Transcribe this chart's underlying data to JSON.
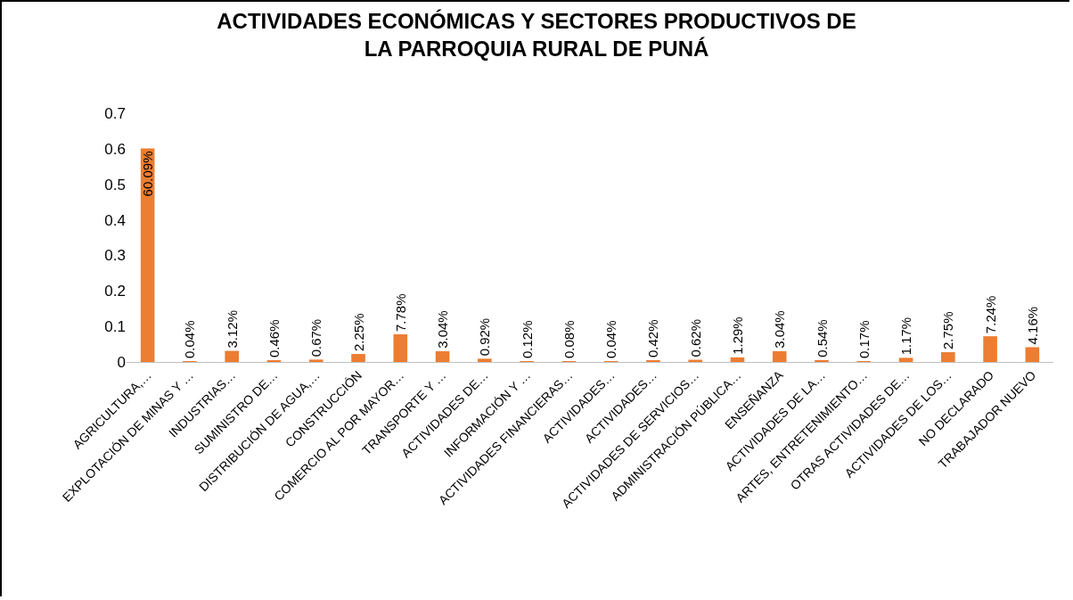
{
  "chart_data": {
    "type": "bar",
    "title": "ACTIVIDADES ECONÓMICAS Y SECTORES PRODUCTIVOS DE\nLA PARROQUIA RURAL DE PUNÁ",
    "categories": [
      "AGRICULTURA,…",
      "EXPLOTACIÓN DE MINAS Y …",
      "INDUSTRIAS…",
      "SUMINISTRO DE…",
      "DISTRIBUCIÓN DE AGUA,…",
      "CONSTRUCCIÓN",
      "COMERCIO AL POR MAYOR…",
      "TRANSPORTE Y …",
      "ACTIVIDADES DE…",
      "INFORMACIÓN Y …",
      "ACTIVIDADES FINANCIERAS…",
      "ACTIVIDADES…",
      "ACTIVIDADES…",
      "ACTIVIDADES DE SERVICIOS…",
      "ADMINISTRACIÓN PÚBLICA…",
      "ENSEÑANZA",
      "ACTIVIDADES DE LA…",
      "ARTES, ENTRETENIMIENTO…",
      "OTRAS ACTIVIDADES DE…",
      "ACTIVIDADES DE LOS…",
      "NO DECLARADO",
      "TRABAJADOR NUEVO"
    ],
    "values": [
      0.6009,
      0.0004,
      0.0312,
      0.0046,
      0.0067,
      0.0225,
      0.0778,
      0.0304,
      0.0092,
      0.0012,
      0.0008,
      0.0004,
      0.0042,
      0.0062,
      0.0129,
      0.0304,
      0.0054,
      0.0017,
      0.0117,
      0.0275,
      0.0724,
      0.0416
    ],
    "value_labels": [
      "60.09%",
      "0.04%",
      "3.12%",
      "0.46%",
      "0.67%",
      "2.25%",
      "7.78%",
      "3.04%",
      "0.92%",
      "0.12%",
      "0.08%",
      "0.04%",
      "0.42%",
      "0.62%",
      "1.29%",
      "3.04%",
      "0.54%",
      "0.17%",
      "1.17%",
      "2.75%",
      "7.24%",
      "4.16%"
    ],
    "color": "#ed7d31",
    "ylim": [
      0,
      0.7
    ],
    "yticks": [
      0,
      0.1,
      0.2,
      0.3,
      0.4,
      0.5,
      0.6,
      0.7
    ],
    "grid": false,
    "legend": false
  }
}
